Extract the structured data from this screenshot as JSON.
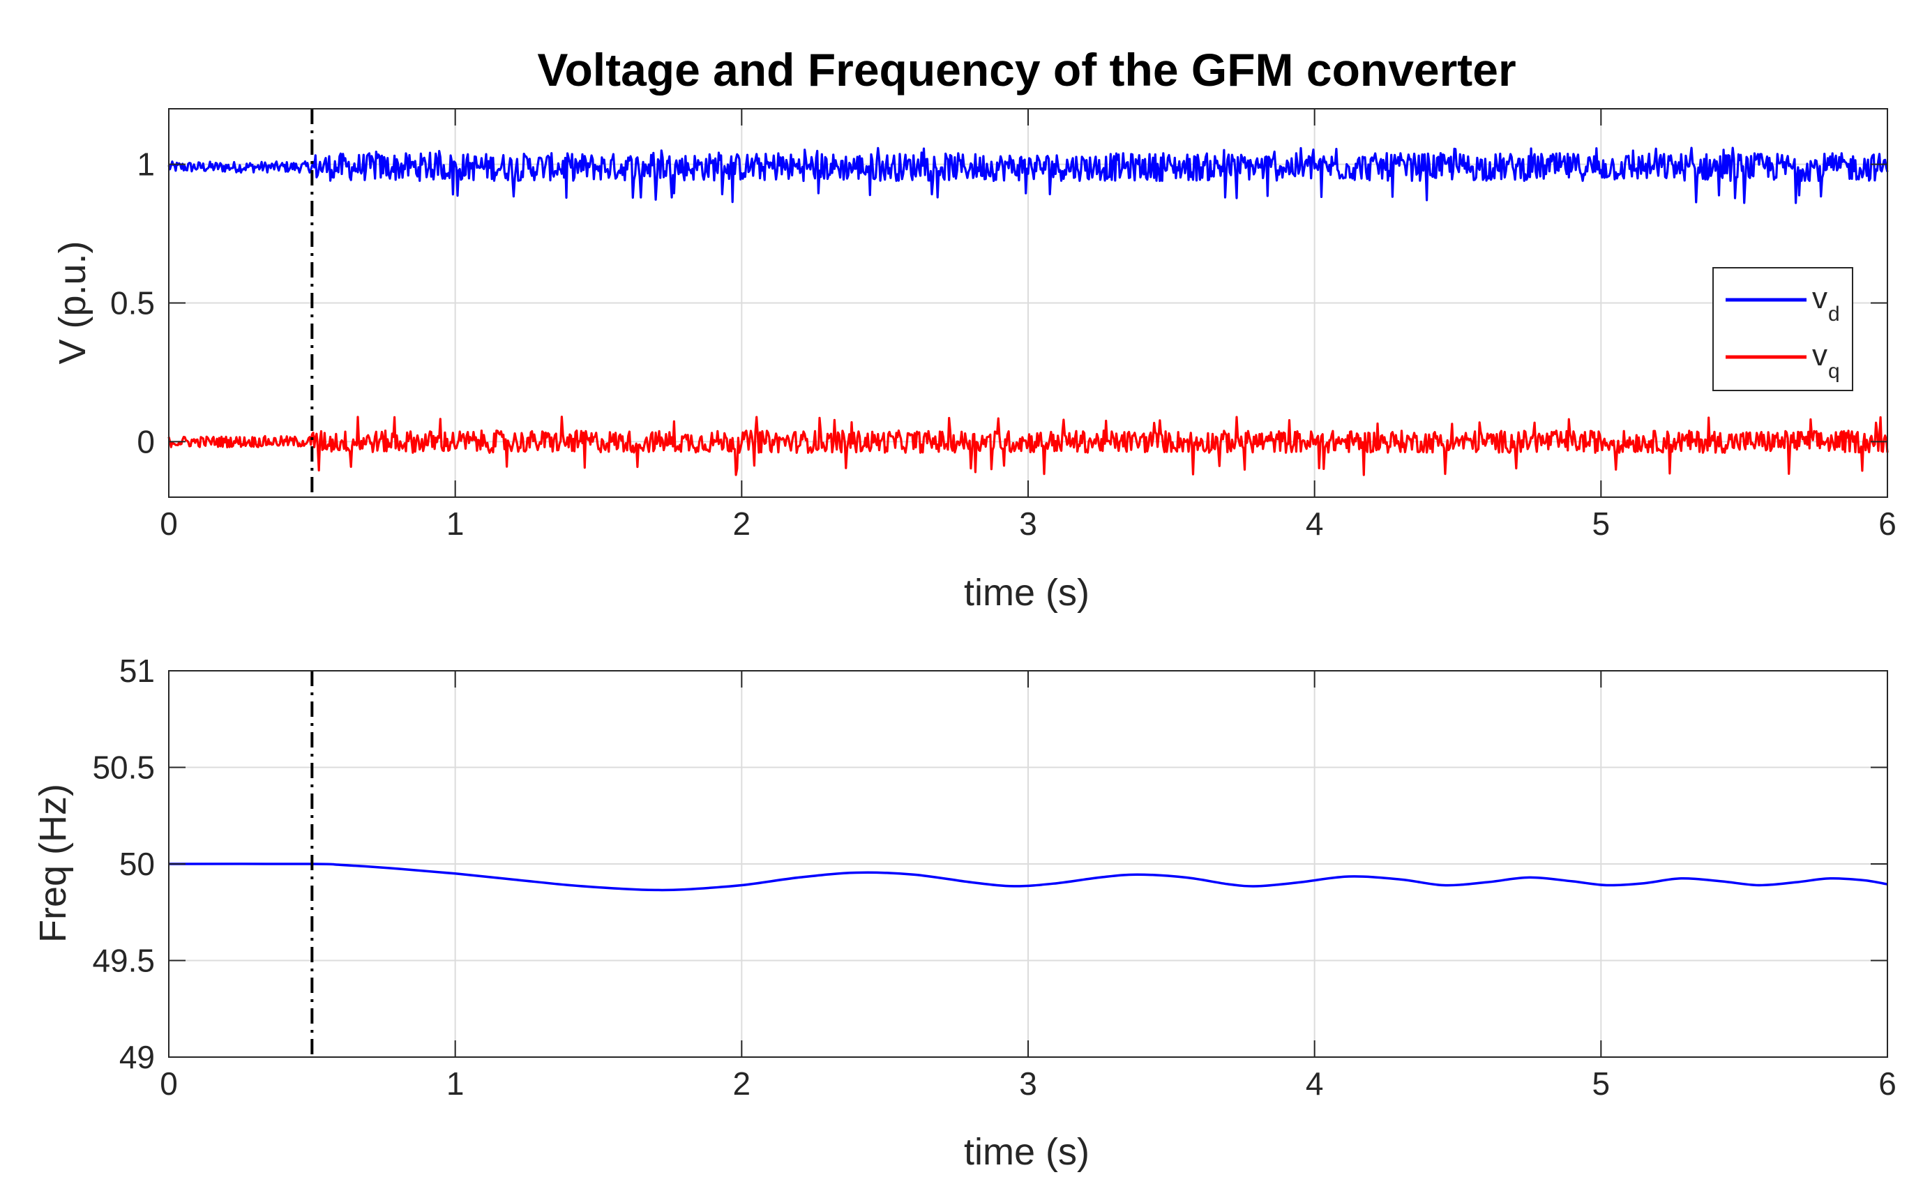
{
  "figure_title": "Voltage and Frequency of the GFM converter",
  "colors": {
    "vd": "#0000ff",
    "vq": "#ff0000",
    "freq": "#0000ff",
    "marker": "#000000",
    "grid": "#dcdcdc"
  },
  "chart_data": [
    {
      "type": "line",
      "title": "Voltage and Frequency of the GFM converter",
      "xlabel": "time (s)",
      "ylabel": "V (p.u.)",
      "xlim": [
        0,
        6
      ],
      "ylim": [
        -0.2,
        1.2
      ],
      "xticks": [
        0,
        1,
        2,
        3,
        4,
        5,
        6
      ],
      "xtick_labels": [
        "0",
        "1",
        "2",
        "3",
        "4",
        "5",
        "6"
      ],
      "yticks": [
        0,
        0.5,
        1
      ],
      "ytick_labels": [
        "0",
        "0.5",
        "1"
      ],
      "grid": true,
      "legend_position": "right",
      "event_marker_x": 0.5,
      "series": [
        {
          "name": "v_d",
          "legend_main": "v",
          "legend_sub": "d",
          "mean": 0.99,
          "noise_before_event": 0.02,
          "noise_after_event": 0.05,
          "min_spike": 0.86,
          "max_spike": 1.06
        },
        {
          "name": "v_q",
          "legend_main": "v",
          "legend_sub": "q",
          "mean": 0.0,
          "noise_before_event": 0.02,
          "noise_after_event": 0.04,
          "min_spike": -0.12,
          "max_spike": 0.09
        }
      ]
    },
    {
      "type": "line",
      "xlabel": "time (s)",
      "ylabel": "Freq (Hz)",
      "xlim": [
        0,
        6
      ],
      "ylim": [
        49,
        51
      ],
      "xticks": [
        0,
        1,
        2,
        3,
        4,
        5,
        6
      ],
      "xtick_labels": [
        "0",
        "1",
        "2",
        "3",
        "4",
        "5",
        "6"
      ],
      "yticks": [
        49,
        49.5,
        50,
        50.5,
        51
      ],
      "ytick_labels": [
        "49",
        "49.5",
        "50",
        "50.5",
        "51"
      ],
      "grid": true,
      "event_marker_x": 0.5,
      "series": [
        {
          "name": "Freq",
          "x": [
            0,
            0.5,
            0.6,
            0.8,
            1.0,
            1.2,
            1.4,
            1.6,
            1.7,
            1.8,
            2.0,
            2.2,
            2.4,
            2.6,
            2.8,
            2.95,
            3.1,
            3.25,
            3.38,
            3.55,
            3.7,
            3.8,
            3.95,
            4.12,
            4.3,
            4.45,
            4.6,
            4.75,
            4.9,
            5.02,
            5.15,
            5.28,
            5.42,
            5.55,
            5.68,
            5.8,
            5.92,
            6.0
          ],
          "y": [
            50.0,
            50.0,
            49.995,
            49.975,
            49.95,
            49.92,
            49.89,
            49.87,
            49.865,
            49.868,
            49.89,
            49.93,
            49.955,
            49.945,
            49.905,
            49.885,
            49.9,
            49.93,
            49.945,
            49.93,
            49.895,
            49.885,
            49.905,
            49.935,
            49.92,
            49.89,
            49.905,
            49.93,
            49.91,
            49.89,
            49.9,
            49.925,
            49.91,
            49.89,
            49.905,
            49.925,
            49.915,
            49.895
          ]
        }
      ]
    }
  ]
}
